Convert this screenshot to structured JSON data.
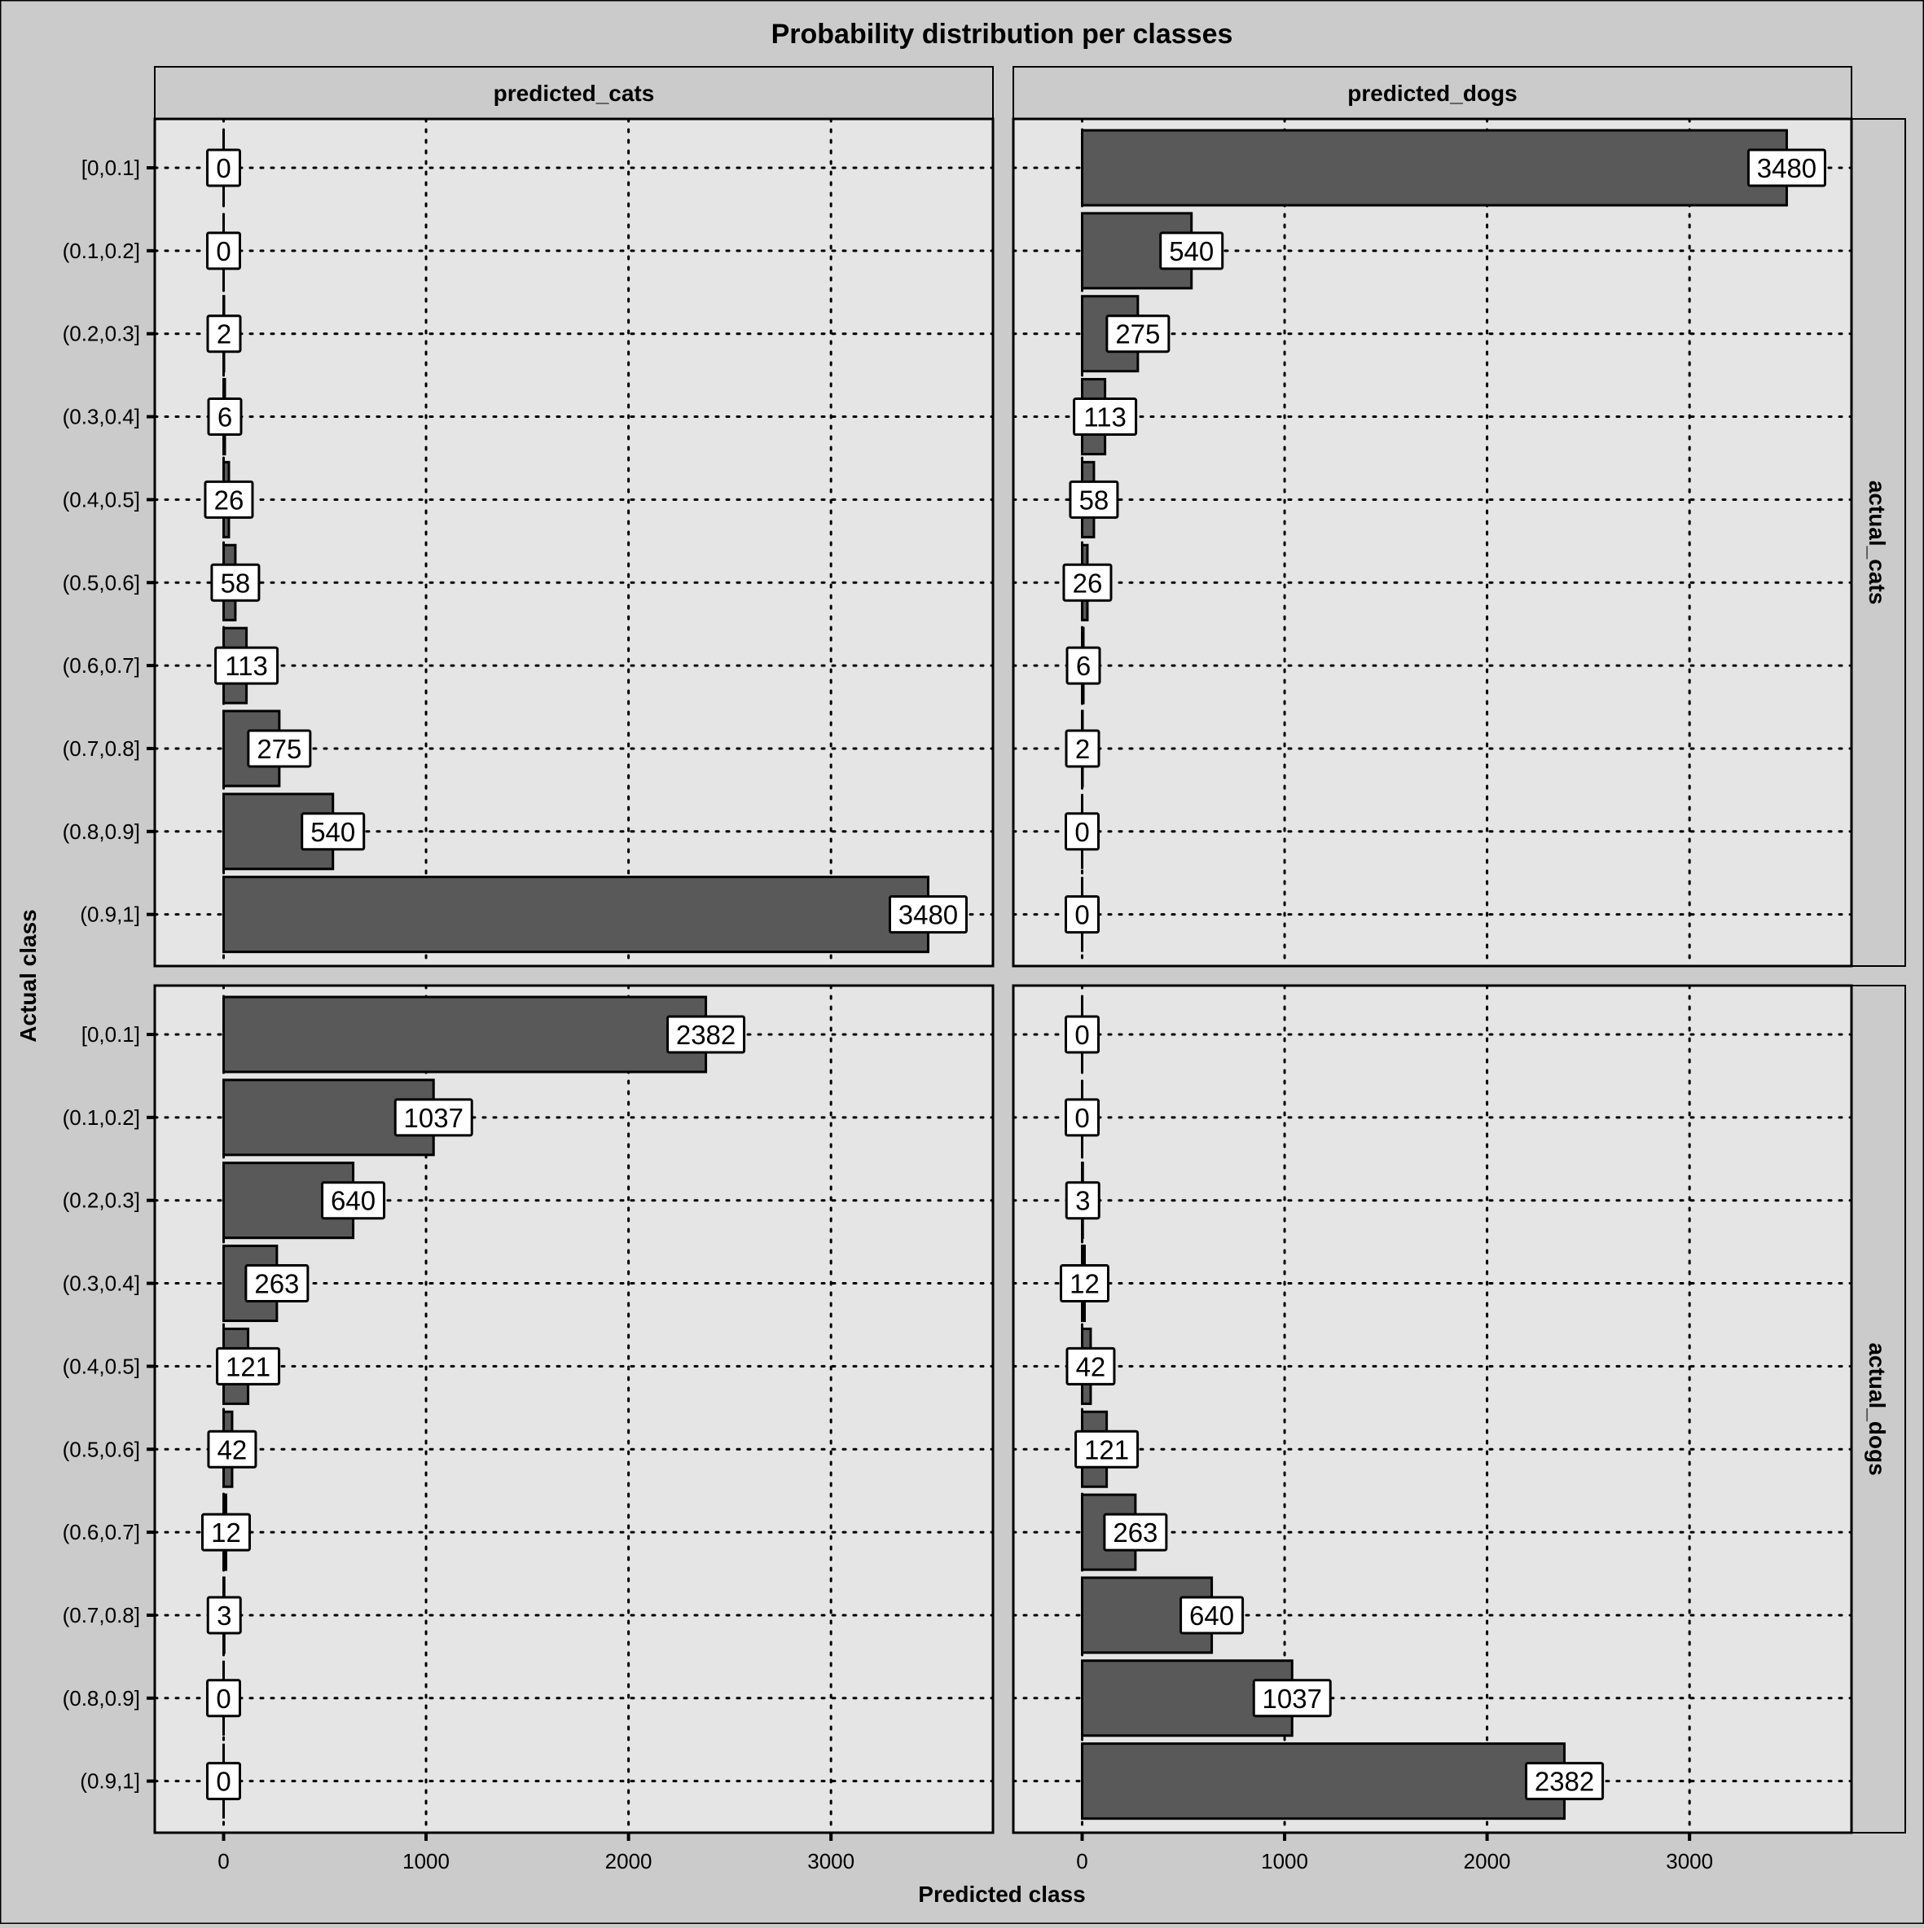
{
  "colors": {
    "page_background": "#cbcbcb",
    "panel_background": "#e5e5e5",
    "strip_background": "#cbcbcb",
    "bar_fill": "#595959",
    "bar_stroke": "#000000",
    "label_fill": "#ffffff",
    "grid": "#000000"
  },
  "chart_data": {
    "type": "bar",
    "orientation": "horizontal",
    "faceted": true,
    "title": "Probability distribution per classes",
    "xlabel": "Predicted class",
    "ylabel": "Actual class",
    "xlim": [
      -340,
      3800
    ],
    "x_ticks": [
      0,
      1000,
      2000,
      3000
    ],
    "x_tick_labels": [
      "0",
      "1000",
      "2000",
      "3000"
    ],
    "grid": "dotted",
    "categories": [
      "[0,0.1]",
      "(0.1,0.2]",
      "(0.2,0.3]",
      "(0.3,0.4]",
      "(0.4,0.5]",
      "(0.5,0.6]",
      "(0.6,0.7]",
      "(0.7,0.8]",
      "(0.8,0.9]",
      "(0.9,1]"
    ],
    "col_facets": [
      "predicted_cats",
      "predicted_dogs"
    ],
    "row_facets": [
      "actual_cats",
      "actual_dogs"
    ],
    "panels": [
      {
        "row": "actual_cats",
        "col": "predicted_cats",
        "values": [
          0,
          0,
          2,
          6,
          26,
          58,
          113,
          275,
          540,
          3480
        ]
      },
      {
        "row": "actual_cats",
        "col": "predicted_dogs",
        "values": [
          3480,
          540,
          275,
          113,
          58,
          26,
          6,
          2,
          0,
          0
        ]
      },
      {
        "row": "actual_dogs",
        "col": "predicted_cats",
        "values": [
          2382,
          1037,
          640,
          263,
          121,
          42,
          12,
          3,
          0,
          0
        ]
      },
      {
        "row": "actual_dogs",
        "col": "predicted_dogs",
        "values": [
          0,
          0,
          3,
          12,
          42,
          121,
          263,
          640,
          1037,
          2382
        ]
      }
    ]
  }
}
